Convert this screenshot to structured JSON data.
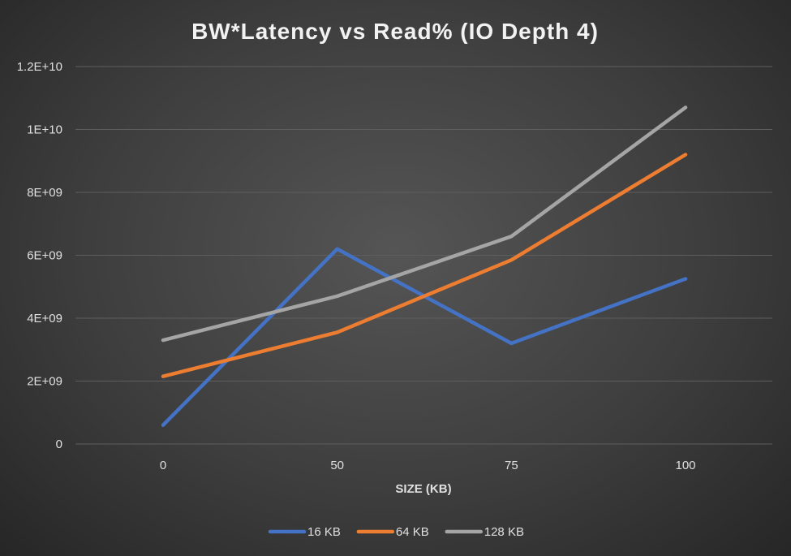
{
  "chart_data": {
    "type": "line",
    "title": "BW*Latency vs Read% (IO Depth 4)",
    "xlabel": "SIZE (KB)",
    "ylabel": "",
    "categories": [
      "0",
      "50",
      "75",
      "100"
    ],
    "ylim": [
      0,
      12000000000
    ],
    "yticks": [
      0,
      2000000000,
      4000000000,
      6000000000,
      8000000000,
      10000000000,
      12000000000
    ],
    "ytick_labels": [
      "0",
      "2E+09",
      "4E+09",
      "6E+09",
      "8E+09",
      "1E+10",
      "1.2E+10"
    ],
    "grid": true,
    "legend_position": "bottom",
    "series": [
      {
        "name": "16 KB",
        "color": "#4472c4",
        "values": [
          600000000,
          6200000000,
          3200000000,
          5250000000
        ]
      },
      {
        "name": "64 KB",
        "color": "#ed7d31",
        "values": [
          2150000000,
          3550000000,
          5850000000,
          9200000000
        ]
      },
      {
        "name": "128 KB",
        "color": "#a5a5a5",
        "values": [
          3300000000,
          4700000000,
          6600000000,
          10700000000
        ]
      }
    ]
  }
}
